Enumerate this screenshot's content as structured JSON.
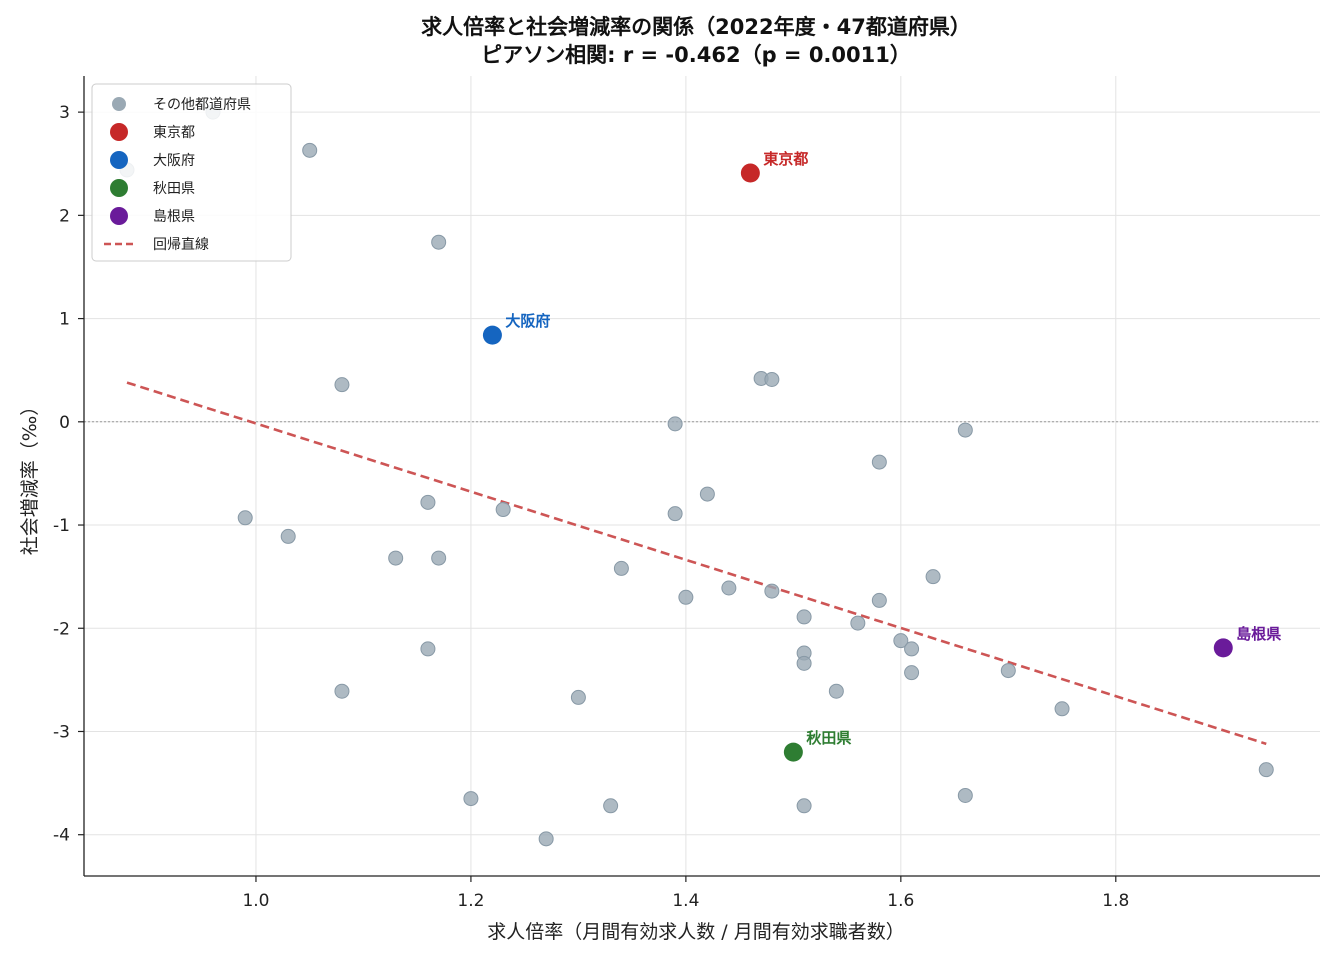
{
  "chart_data": {
    "type": "scatter",
    "title": "求人倍率と社会増減率の関係（2022年度・47都道府県）",
    "subtitle": "ピアソン相関: r = -0.462（p = 0.0011）",
    "xlabel": "求人倍率（月間有効求人数 / 月間有効求職者数）",
    "ylabel": "社会増減率（‰）",
    "xlim": [
      0.84,
      1.99
    ],
    "ylim": [
      -4.4,
      3.35
    ],
    "xticks": [
      1.0,
      1.2,
      1.4,
      1.6,
      1.8
    ],
    "xtick_labels": [
      "1.0",
      "1.2",
      "1.4",
      "1.6",
      "1.8"
    ],
    "yticks": [
      3,
      2,
      1,
      0,
      -1,
      -2,
      -3,
      -4
    ],
    "ytick_labels": [
      "3",
      "2",
      "1",
      "0",
      "-1",
      "-2",
      "-3",
      "-4"
    ],
    "grid": true,
    "zero_line": true,
    "legend_position": "top-left",
    "series": [
      {
        "name": "その他都道府県",
        "color": "#9aa9b4",
        "points": [
          [
            0.88,
            2.44
          ],
          [
            0.96,
            3.0
          ],
          [
            1.05,
            2.63
          ],
          [
            1.17,
            1.74
          ],
          [
            1.08,
            0.36
          ],
          [
            0.99,
            -0.93
          ],
          [
            1.03,
            -1.11
          ],
          [
            1.13,
            -1.32
          ],
          [
            1.17,
            -1.32
          ],
          [
            1.16,
            -0.78
          ],
          [
            1.23,
            -0.85
          ],
          [
            1.16,
            -2.2
          ],
          [
            1.08,
            -2.61
          ],
          [
            1.2,
            -3.65
          ],
          [
            1.27,
            -4.04
          ],
          [
            1.3,
            -2.67
          ],
          [
            1.33,
            -3.72
          ],
          [
            1.34,
            -1.42
          ],
          [
            1.39,
            -0.02
          ],
          [
            1.39,
            -0.89
          ],
          [
            1.4,
            -1.7
          ],
          [
            1.42,
            -0.7
          ],
          [
            1.44,
            -1.61
          ],
          [
            1.47,
            0.42
          ],
          [
            1.48,
            0.41
          ],
          [
            1.48,
            -1.64
          ],
          [
            1.51,
            -1.89
          ],
          [
            1.51,
            -2.24
          ],
          [
            1.51,
            -2.34
          ],
          [
            1.51,
            -3.72
          ],
          [
            1.54,
            -2.61
          ],
          [
            1.56,
            -1.95
          ],
          [
            1.58,
            -0.39
          ],
          [
            1.58,
            -1.73
          ],
          [
            1.6,
            -2.12
          ],
          [
            1.61,
            -2.43
          ],
          [
            1.61,
            -2.2
          ],
          [
            1.63,
            -1.5
          ],
          [
            1.66,
            -0.08
          ],
          [
            1.66,
            -3.62
          ],
          [
            1.7,
            -2.41
          ],
          [
            1.75,
            -2.78
          ],
          [
            1.94,
            -3.37
          ]
        ]
      },
      {
        "name": "東京都",
        "color": "#c62828",
        "points": [
          [
            1.46,
            2.41
          ]
        ]
      },
      {
        "name": "大阪府",
        "color": "#1565c0",
        "points": [
          [
            1.22,
            0.84
          ]
        ]
      },
      {
        "name": "秋田県",
        "color": "#2e7d32",
        "points": [
          [
            1.5,
            -3.2
          ]
        ]
      },
      {
        "name": "島根県",
        "color": "#6a1b9a",
        "points": [
          [
            1.9,
            -2.19
          ]
        ]
      }
    ],
    "regression": {
      "name": "回帰直線",
      "color": "#cd5555",
      "x": [
        0.88,
        1.94
      ],
      "y": [
        0.38,
        -3.12
      ]
    },
    "annotations": [
      {
        "text": "東京都",
        "x": 1.46,
        "y": 2.41,
        "color": "#c62828"
      },
      {
        "text": "大阪府",
        "x": 1.22,
        "y": 0.84,
        "color": "#1565c0"
      },
      {
        "text": "秋田県",
        "x": 1.5,
        "y": -3.2,
        "color": "#2e7d32"
      },
      {
        "text": "島根県",
        "x": 1.9,
        "y": -2.19,
        "color": "#6a1b9a"
      }
    ]
  }
}
